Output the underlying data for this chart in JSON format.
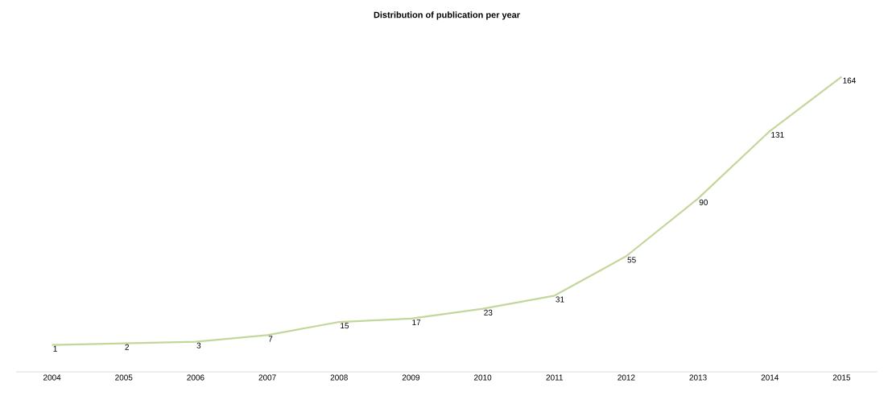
{
  "chart_data": {
    "type": "line",
    "title": "Distribution of publication per year",
    "categories": [
      "2004",
      "2005",
      "2006",
      "2007",
      "2008",
      "2009",
      "2010",
      "2011",
      "2012",
      "2013",
      "2014",
      "2015"
    ],
    "values": [
      1,
      2,
      3,
      7,
      15,
      17,
      23,
      31,
      55,
      90,
      131,
      164
    ],
    "color": "#c3d69b",
    "data_labels": true,
    "marker": "none",
    "line_style": "solid"
  }
}
